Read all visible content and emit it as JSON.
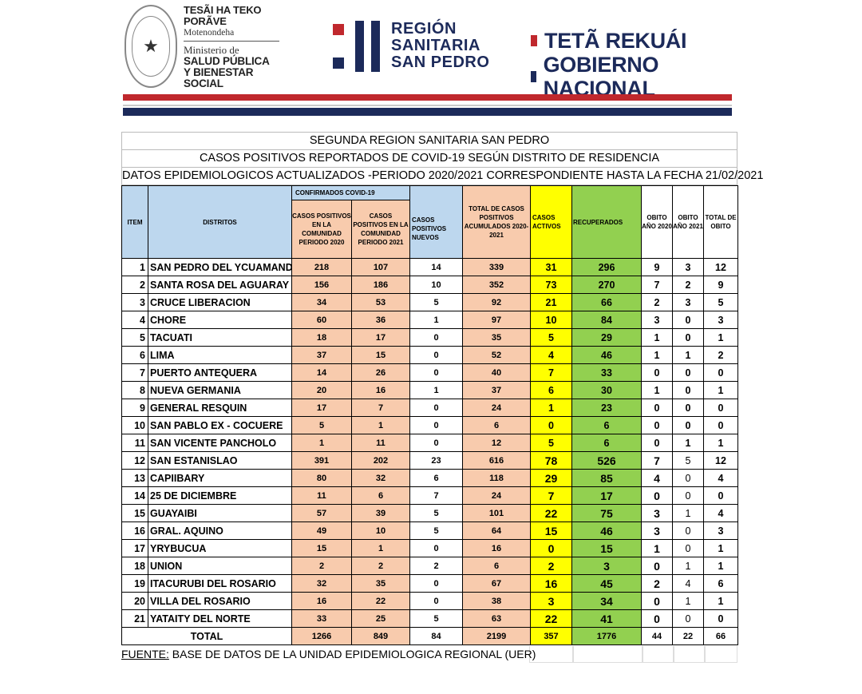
{
  "header": {
    "ministry": {
      "line1": "TESÃI HA TEKO",
      "line2": "PORÃVE",
      "line3": "Motenondeha",
      "line4": "Ministerio de",
      "line5": "SALUD PÚBLICA",
      "line6": "Y BIENESTAR SOCIAL"
    },
    "region": {
      "line1": "REGIÓN",
      "line2": "SANITARIA",
      "line3": "SAN PEDRO"
    },
    "government": {
      "line1": "TETÃ REKUÁI",
      "line2": "GOBIERNO NACIONAL"
    }
  },
  "titles": {
    "title1": "SEGUNDA REGION SANITARIA SAN PEDRO",
    "title2": "CASOS POSITIVOS REPORTADOS  DE COVID-19 SEGÚN  DISTRITO  DE RESIDENCIA",
    "title3": "DATOS EPIDEMIOLOGICOS ACTUALIZADOS -PERIODO 2020/2021 CORRESPONDIENTE HASTA LA FECHA 21/02/2021"
  },
  "columns": {
    "item": "ITEM",
    "distritos": "DISTRITOS",
    "confirmados": "CONFIRMADOS COVID-19",
    "casos2020": "CASOS POSITIVOS EN LA COMUNIDAD PERIODO 2020",
    "casos2021": "CASOS POSITIVOS EN LA COMUNIDAD PERIODO 2021",
    "nuevos": "CASOS POSITIVOS NUEVOS",
    "acumulados": "TOTAL DE CASOS POSITIVOS ACUMULADOS 2020-2021",
    "activos": "CASOS ACTIVOS",
    "recuperados": "RECUPERADOS",
    "obito2020": "OBITO AÑO 2020",
    "obito2021": "OBITO AÑO 2021",
    "total_obito": "TOTAL DE OBITO"
  },
  "rows": [
    [
      "1",
      "SAN PEDRO DEL YCUAMANDYYU",
      "218",
      "107",
      "14",
      "339",
      "31",
      "296",
      "9",
      "3",
      "12"
    ],
    [
      "2",
      "SANTA ROSA DEL AGUARAY",
      "156",
      "186",
      "10",
      "352",
      "73",
      "270",
      "7",
      "2",
      "9"
    ],
    [
      "3",
      "CRUCE LIBERACION",
      "34",
      "53",
      "5",
      "92",
      "21",
      "66",
      "2",
      "3",
      "5"
    ],
    [
      "4",
      "CHORE",
      "60",
      "36",
      "1",
      "97",
      "10",
      "84",
      "3",
      "0",
      "3"
    ],
    [
      "5",
      "TACUATI",
      "18",
      "17",
      "0",
      "35",
      "5",
      "29",
      "1",
      "0",
      "1"
    ],
    [
      "6",
      "LIMA",
      "37",
      "15",
      "0",
      "52",
      "4",
      "46",
      "1",
      "1",
      "2"
    ],
    [
      "7",
      "PUERTO ANTEQUERA",
      "14",
      "26",
      "0",
      "40",
      "7",
      "33",
      "0",
      "0",
      "0"
    ],
    [
      "8",
      "NUEVA GERMANIA",
      "20",
      "16",
      "1",
      "37",
      "6",
      "30",
      "1",
      "0",
      "1"
    ],
    [
      "9",
      "GENERAL RESQUIN",
      "17",
      "7",
      "0",
      "24",
      "1",
      "23",
      "0",
      "0",
      "0"
    ],
    [
      "10",
      "SAN PABLO EX - COCUERE",
      "5",
      "1",
      "0",
      "6",
      "0",
      "6",
      "0",
      "0",
      "0"
    ],
    [
      "11",
      "SAN VICENTE PANCHOLO",
      "1",
      "11",
      "0",
      "12",
      "5",
      "6",
      "0",
      "1",
      "1"
    ],
    [
      "12",
      "SAN ESTANISLAO",
      "391",
      "202",
      "23",
      "616",
      "78",
      "526",
      "7",
      "5",
      "12"
    ],
    [
      "13",
      "CAPIIBARY",
      "80",
      "32",
      "6",
      "118",
      "29",
      "85",
      "4",
      "0",
      "4"
    ],
    [
      "14",
      "25 DE DICIEMBRE",
      "11",
      "6",
      "7",
      "24",
      "7",
      "17",
      "0",
      "0",
      "0"
    ],
    [
      "15",
      "GUAYAIBI",
      "57",
      "39",
      "5",
      "101",
      "22",
      "75",
      "3",
      "1",
      "4"
    ],
    [
      "16",
      "GRAL. AQUINO",
      "49",
      "10",
      "5",
      "64",
      "15",
      "46",
      "3",
      "0",
      "3"
    ],
    [
      "17",
      "YRYBUCUA",
      "15",
      "1",
      "0",
      "16",
      "0",
      "15",
      "1",
      "0",
      "1"
    ],
    [
      "18",
      "UNION",
      "2",
      "2",
      "2",
      "6",
      "2",
      "3",
      "0",
      "1",
      "1"
    ],
    [
      "19",
      "ITACURUBI DEL ROSARIO",
      "32",
      "35",
      "0",
      "67",
      "16",
      "45",
      "2",
      "4",
      "6"
    ],
    [
      "20",
      "VILLA DEL ROSARIO",
      "16",
      "22",
      "0",
      "38",
      "3",
      "34",
      "0",
      "1",
      "1"
    ],
    [
      "21",
      "YATAITY DEL NORTE",
      "33",
      "25",
      "5",
      "63",
      "22",
      "41",
      "0",
      "0",
      "0"
    ]
  ],
  "total": {
    "label": "TOTAL",
    "values": [
      "1266",
      "849",
      "84",
      "2199",
      "357",
      "1776",
      "44",
      "22",
      "66"
    ]
  },
  "footer": {
    "prefix": "FUENTE:",
    "text": " BASE DE DATOS DE LA UNIDAD EPIDEMIOLOGICA REGIONAL (UER)"
  },
  "colors": {
    "blue": "#bdd7ee",
    "peach": "#f8cbad",
    "yellow": "#ffff00",
    "green": "#92d050",
    "navy": "#1c2a5a",
    "red": "#c0282d"
  }
}
